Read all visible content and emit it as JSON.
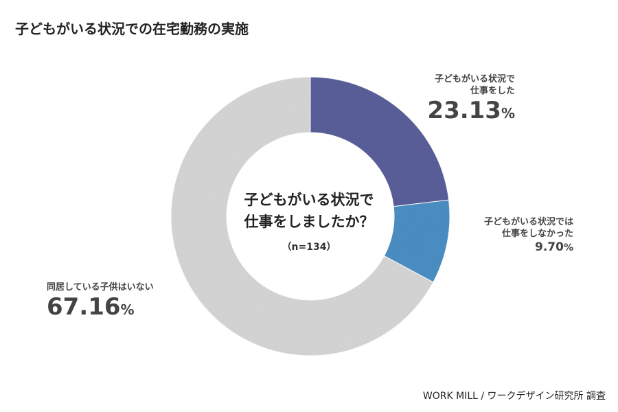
{
  "title": "子どもがいる状況での在宅勤務の実施",
  "center": {
    "question_line1": "子どもがいる状況で",
    "question_line2": "仕事をしましたか？",
    "n": "（n=134）"
  },
  "source": "WORK MILL / ワークデザイン研究所 調査",
  "chart_data": {
    "type": "pie",
    "title": "子どもがいる状況での在宅勤務の実施",
    "slices": [
      {
        "label": "子どもがいる状況で仕事をした",
        "label_line1": "子どもがいる状況で",
        "label_line2": "仕事をした",
        "value": 23.13,
        "value_text": "23.13",
        "unit": "%",
        "color": "#5a5f9a"
      },
      {
        "label": "子どもがいる状況では仕事をしなかった",
        "label_line1": "子どもがいる状況では",
        "label_line2": "仕事をしなかった",
        "value": 9.7,
        "value_text": "9.70",
        "unit": "%",
        "color": "#4b8fc4"
      },
      {
        "label": "同居している子供はいない",
        "label_line1": "同居している子供はいない",
        "label_line2": "",
        "value": 67.16,
        "value_text": "67.16",
        "unit": "%",
        "color": "#d6d6d6"
      }
    ]
  }
}
